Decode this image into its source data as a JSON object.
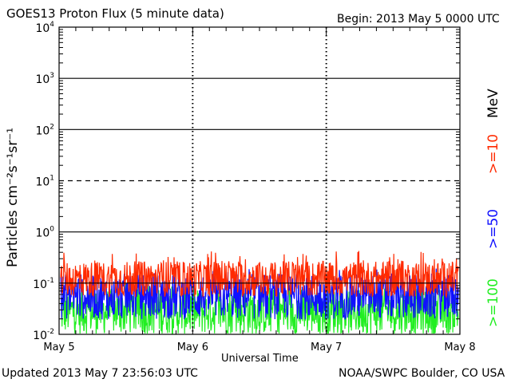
{
  "header": {
    "title": "GOES13 Proton Flux (5 minute data)",
    "begin": "Begin: 2013 May 5 0000 UTC"
  },
  "footer": {
    "updated": "Updated 2013 May  7 23:56:03 UTC",
    "credit": "NOAA/SWPC Boulder, CO USA"
  },
  "legend": {
    "unit": "MeV",
    "series_labels": [
      ">=10",
      ">=50",
      ">=100"
    ]
  },
  "colors": {
    "ge10": "#ff2a00",
    "ge50": "#1010ff",
    "ge100": "#22ee22",
    "axis": "#000000"
  },
  "chart_data": {
    "type": "line",
    "title": "GOES13 Proton Flux (5 minute data)",
    "xlabel": "Universal Time",
    "ylabel": "Particles cm⁻²s⁻¹sr⁻¹",
    "y_scale": "log",
    "ylim": [
      0.01,
      10000
    ],
    "y_ticks": [
      {
        "value": 0.01,
        "base": "10",
        "exp": "-2"
      },
      {
        "value": 0.1,
        "base": "10",
        "exp": "-1"
      },
      {
        "value": 1,
        "base": "10",
        "exp": "0"
      },
      {
        "value": 10,
        "base": "10",
        "exp": "1"
      },
      {
        "value": 100,
        "base": "10",
        "exp": "2"
      },
      {
        "value": 1000,
        "base": "10",
        "exp": "3"
      },
      {
        "value": 10000,
        "base": "10",
        "exp": "4"
      }
    ],
    "xlim": [
      "2013-05-05",
      "2013-05-08"
    ],
    "x_ticks": [
      "May 5",
      "May 6",
      "May 7",
      "May 8"
    ],
    "threshold_lines": [
      {
        "value": 10,
        "style": "dashed"
      },
      {
        "value": 1,
        "style": "solid"
      },
      {
        "value": 100,
        "style": "solid"
      },
      {
        "value": 1000,
        "style": "solid"
      },
      {
        "value": 0.1,
        "style": "solid"
      }
    ],
    "series": [
      {
        "name": ">=10 MeV",
        "color": "#ff2a00",
        "typical": 0.12,
        "spread": 0.35
      },
      {
        "name": ">=50 MeV",
        "color": "#1010ff",
        "typical": 0.055,
        "spread": 0.45
      },
      {
        "name": ">=100 MeV",
        "color": "#22ee22",
        "typical": 0.028,
        "spread": 0.45
      }
    ],
    "grid": "major lines at each decade, dashed day boundaries"
  }
}
